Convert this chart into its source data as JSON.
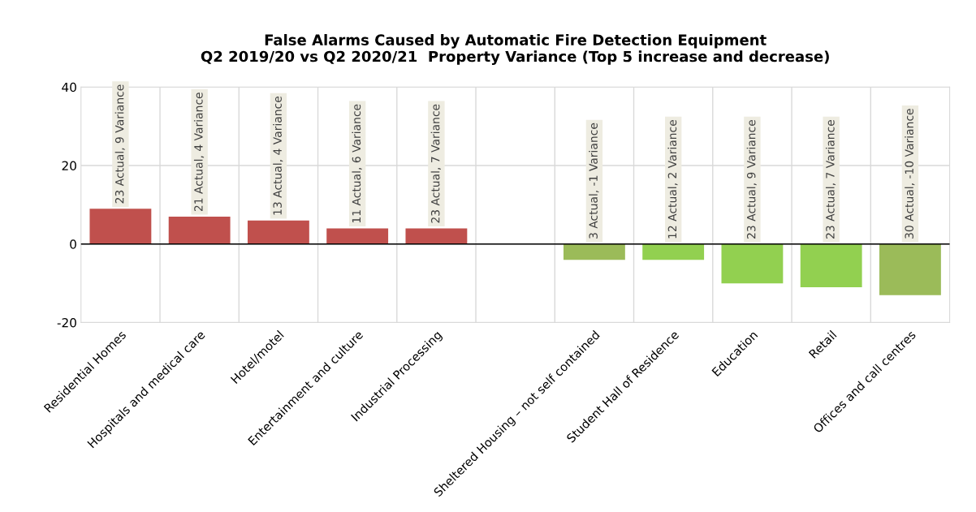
{
  "chart_data": {
    "type": "bar",
    "title": "False Alarms Caused by Automatic Fire Detection Equipment\nQ2 2019/20 vs Q2 2020/21  Property Variance (Top 5 increase and decrease)",
    "categories": [
      "Residential Homes",
      "Hospitals and medical care",
      "Hotel/motel",
      "Entertainment and culture",
      "Industrial Processing",
      null,
      "Sheltered Housing – not self contained",
      "Student Hall of Residence",
      "Education",
      "Retail",
      "Offices and call centres"
    ],
    "values": [
      9,
      7,
      6,
      4,
      4,
      null,
      -4,
      -4,
      -10,
      -11,
      -13
    ],
    "colors": [
      "#c0504d",
      "#c0504d",
      "#c0504d",
      "#c0504d",
      "#c0504d",
      null,
      "#9bbb59",
      "#92d050",
      "#92d050",
      "#92d050",
      "#9bbb59"
    ],
    "annotations": [
      "23 Actual, 9 Variance",
      "21 Actual, 4 Variance",
      "13 Actual, 4 Variance",
      "11 Actual, 6 Variance",
      "23 Actual, 7 Variance",
      "3 Actual, -1 Variance",
      "12 Actual, 2 Variance",
      "23 Actual, 9 Variance",
      "23 Actual, 7 Variance",
      "30 Actual, -10 Variance"
    ],
    "ylim": [
      -20,
      40
    ],
    "yticks": [
      -20,
      0,
      20,
      40
    ],
    "grid": true
  }
}
